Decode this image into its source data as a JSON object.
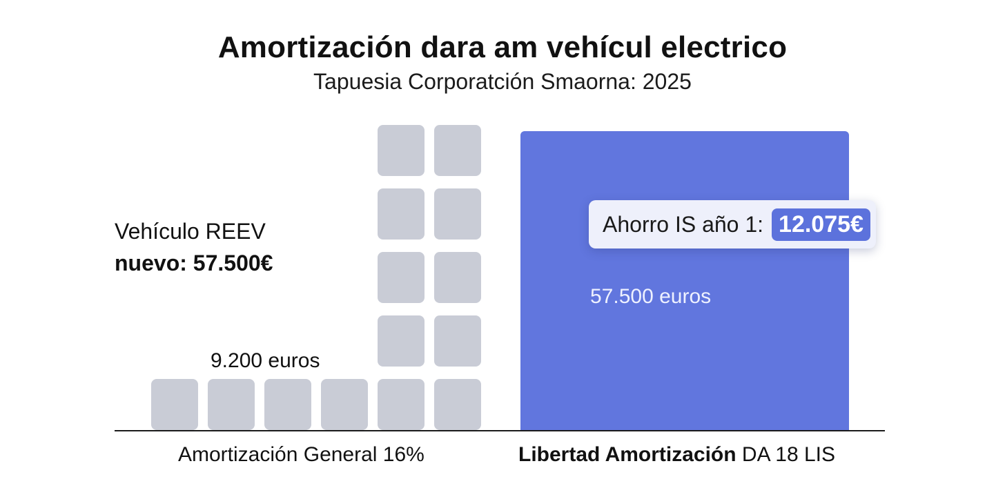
{
  "chart_data": {
    "type": "bar",
    "title": "Amortización dara am vehícul electrico",
    "subtitle": "Tapuesia Corporatción Smaorna: 2025",
    "annotation_left": {
      "line1": "Vehículo REEV",
      "line2": "nuevo: 57.500€"
    },
    "categories": [
      {
        "label_bold": "",
        "label_regular": "Amortización General 16%"
      },
      {
        "label_bold": "Libertad Amortización",
        "label_regular": " DA 18 LIS"
      }
    ],
    "values": [
      9200,
      57500
    ],
    "value_labels": [
      "9.200 euros",
      "57.500 euros"
    ],
    "block_columns": [
      1,
      1,
      1,
      1,
      5,
      5
    ],
    "callout": {
      "label": "Ahorro IS año 1:",
      "value": "12.075€"
    },
    "colors": {
      "block": "#c9ccd6",
      "bar": "#6176de",
      "callout_accent": "#5c72dc",
      "baseline": "#1a1a1a"
    }
  }
}
